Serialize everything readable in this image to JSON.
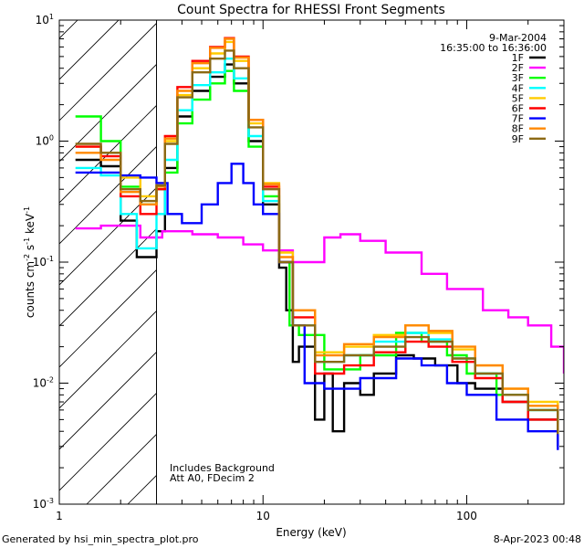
{
  "chart_data": {
    "type": "line",
    "title": "Count Spectra for RHESSI Front Segments",
    "xlabel": "Energy (keV)",
    "ylabel": "counts cm^-2 s^-1 keV^-1",
    "ylabel_parts": {
      "base": "counts cm",
      "exp1": "-2",
      "mid": " s",
      "exp2": "-1",
      "tail": " keV",
      "exp3": "-1"
    },
    "x_scale": "log",
    "y_scale": "log",
    "xlim": [
      1,
      300
    ],
    "ylim": [
      0.001,
      10
    ],
    "x_ticks": [
      {
        "value": 1,
        "label": "1"
      },
      {
        "value": 10,
        "label": "10"
      },
      {
        "value": 100,
        "label": "100"
      }
    ],
    "y_ticks": [
      {
        "value": 0.001,
        "base": "10",
        "exp": "-3"
      },
      {
        "value": 0.01,
        "base": "10",
        "exp": "-2"
      },
      {
        "value": 0.1,
        "base": "10",
        "exp": "-1"
      },
      {
        "value": 1,
        "base": "10",
        "exp": "0"
      },
      {
        "value": 10,
        "base": "10",
        "exp": "1"
      }
    ],
    "excluded_region": {
      "from": 1,
      "to": 3,
      "style": "hatched"
    },
    "date": "9-Mar-2004",
    "time_range": "16:35:00 to 16:36:00",
    "annotations": [
      "Includes Background",
      "Att A0, FDecim 2"
    ],
    "series": [
      {
        "name": "1F",
        "color": "#000000",
        "points": [
          [
            1.2,
            0.7
          ],
          [
            1.6,
            0.62
          ],
          [
            2.0,
            0.22
          ],
          [
            2.4,
            0.11
          ],
          [
            3.0,
            0.18
          ],
          [
            3.3,
            0.6
          ],
          [
            3.8,
            1.6
          ],
          [
            4.5,
            2.6
          ],
          [
            5.5,
            3.4
          ],
          [
            6.5,
            4.3
          ],
          [
            7.2,
            3.0
          ],
          [
            8.5,
            1.0
          ],
          [
            10.0,
            0.3
          ],
          [
            12.0,
            0.09
          ],
          [
            13.0,
            0.04
          ],
          [
            14.0,
            0.015
          ],
          [
            15.0,
            0.02
          ],
          [
            18.0,
            0.005
          ],
          [
            20.0,
            0.012
          ],
          [
            22.0,
            0.004
          ],
          [
            25.0,
            0.01
          ],
          [
            30.0,
            0.008
          ],
          [
            35.0,
            0.012
          ],
          [
            45.0,
            0.017
          ],
          [
            55.0,
            0.016
          ],
          [
            70.0,
            0.014
          ],
          [
            90.0,
            0.01
          ],
          [
            110.0,
            0.009
          ],
          [
            150.0,
            0.007
          ],
          [
            200.0,
            0.005
          ],
          [
            280.0,
            0.003
          ]
        ]
      },
      {
        "name": "2F",
        "color": "#ff00ff",
        "points": [
          [
            1.2,
            0.19
          ],
          [
            1.6,
            0.2
          ],
          [
            2.5,
            0.16
          ],
          [
            3.2,
            0.18
          ],
          [
            4.5,
            0.17
          ],
          [
            6.0,
            0.16
          ],
          [
            8.0,
            0.14
          ],
          [
            10.0,
            0.125
          ],
          [
            14.0,
            0.1
          ],
          [
            20.0,
            0.16
          ],
          [
            24.0,
            0.17
          ],
          [
            30.0,
            0.15
          ],
          [
            40.0,
            0.12
          ],
          [
            60.0,
            0.08
          ],
          [
            80.0,
            0.06
          ],
          [
            120.0,
            0.04
          ],
          [
            160.0,
            0.035
          ],
          [
            200.0,
            0.03
          ],
          [
            260.0,
            0.02
          ],
          [
            300.0,
            0.012
          ]
        ]
      },
      {
        "name": "3F",
        "color": "#00ff00",
        "points": [
          [
            1.2,
            1.6
          ],
          [
            1.6,
            1.0
          ],
          [
            2.0,
            0.42
          ],
          [
            2.5,
            0.3
          ],
          [
            3.0,
            0.4
          ],
          [
            3.3,
            0.55
          ],
          [
            3.8,
            1.4
          ],
          [
            4.5,
            2.2
          ],
          [
            5.5,
            3.0
          ],
          [
            6.5,
            3.8
          ],
          [
            7.2,
            2.6
          ],
          [
            8.5,
            0.9
          ],
          [
            10.0,
            0.35
          ],
          [
            12.0,
            0.1
          ],
          [
            13.5,
            0.03
          ],
          [
            15.0,
            0.025
          ],
          [
            20.0,
            0.013
          ],
          [
            30.0,
            0.017
          ],
          [
            45.0,
            0.026
          ],
          [
            60.0,
            0.022
          ],
          [
            80.0,
            0.017
          ],
          [
            100.0,
            0.012
          ],
          [
            140.0,
            0.008
          ],
          [
            200.0,
            0.006
          ],
          [
            280.0,
            0.004
          ]
        ]
      },
      {
        "name": "4F",
        "color": "#00ffff",
        "points": [
          [
            1.2,
            0.6
          ],
          [
            1.6,
            0.52
          ],
          [
            2.0,
            0.25
          ],
          [
            2.4,
            0.13
          ],
          [
            3.0,
            0.25
          ],
          [
            3.3,
            0.7
          ],
          [
            3.8,
            1.8
          ],
          [
            4.5,
            2.9
          ],
          [
            5.5,
            3.7
          ],
          [
            6.5,
            4.8
          ],
          [
            7.2,
            3.3
          ],
          [
            8.5,
            1.1
          ],
          [
            10.0,
            0.32
          ],
          [
            12.0,
            0.1
          ],
          [
            14.0,
            0.03
          ],
          [
            18.0,
            0.015
          ],
          [
            25.0,
            0.017
          ],
          [
            35.0,
            0.022
          ],
          [
            50.0,
            0.026
          ],
          [
            65.0,
            0.023
          ],
          [
            85.0,
            0.016
          ],
          [
            110.0,
            0.012
          ],
          [
            150.0,
            0.008
          ],
          [
            200.0,
            0.006
          ],
          [
            280.0,
            0.004
          ]
        ]
      },
      {
        "name": "5F",
        "color": "#ffcc00",
        "points": [
          [
            1.2,
            0.9
          ],
          [
            1.6,
            0.8
          ],
          [
            2.0,
            0.5
          ],
          [
            2.5,
            0.35
          ],
          [
            3.0,
            0.45
          ],
          [
            3.3,
            1.0
          ],
          [
            3.8,
            2.4
          ],
          [
            4.5,
            4.0
          ],
          [
            5.5,
            5.3
          ],
          [
            6.5,
            6.6
          ],
          [
            7.2,
            4.6
          ],
          [
            8.5,
            1.4
          ],
          [
            10.0,
            0.45
          ],
          [
            12.0,
            0.12
          ],
          [
            14.0,
            0.04
          ],
          [
            18.0,
            0.018
          ],
          [
            25.0,
            0.02
          ],
          [
            35.0,
            0.025
          ],
          [
            50.0,
            0.03
          ],
          [
            65.0,
            0.026
          ],
          [
            85.0,
            0.019
          ],
          [
            110.0,
            0.014
          ],
          [
            150.0,
            0.009
          ],
          [
            200.0,
            0.007
          ],
          [
            280.0,
            0.0045
          ]
        ]
      },
      {
        "name": "6F",
        "color": "#ff0000",
        "points": [
          [
            1.2,
            0.9
          ],
          [
            1.6,
            0.75
          ],
          [
            2.0,
            0.35
          ],
          [
            2.5,
            0.25
          ],
          [
            3.0,
            0.4
          ],
          [
            3.3,
            1.1
          ],
          [
            3.8,
            2.8
          ],
          [
            4.5,
            4.6
          ],
          [
            5.5,
            6.0
          ],
          [
            6.5,
            7.1
          ],
          [
            7.2,
            5.0
          ],
          [
            8.5,
            1.5
          ],
          [
            10.0,
            0.42
          ],
          [
            12.0,
            0.1
          ],
          [
            14.0,
            0.035
          ],
          [
            18.0,
            0.012
          ],
          [
            25.0,
            0.014
          ],
          [
            35.0,
            0.018
          ],
          [
            50.0,
            0.022
          ],
          [
            65.0,
            0.02
          ],
          [
            85.0,
            0.015
          ],
          [
            110.0,
            0.011
          ],
          [
            150.0,
            0.007
          ],
          [
            200.0,
            0.005
          ],
          [
            280.0,
            0.0035
          ]
        ]
      },
      {
        "name": "7F",
        "color": "#0000ff",
        "points": [
          [
            1.2,
            0.55
          ],
          [
            1.6,
            0.55
          ],
          [
            2.0,
            0.52
          ],
          [
            2.5,
            0.5
          ],
          [
            3.0,
            0.45
          ],
          [
            3.4,
            0.25
          ],
          [
            4.0,
            0.21
          ],
          [
            5.0,
            0.3
          ],
          [
            6.0,
            0.45
          ],
          [
            7.0,
            0.65
          ],
          [
            8.0,
            0.45
          ],
          [
            9.0,
            0.3
          ],
          [
            10.0,
            0.25
          ],
          [
            12.0,
            0.1
          ],
          [
            14.0,
            0.03
          ],
          [
            16.0,
            0.01
          ],
          [
            20.0,
            0.009
          ],
          [
            30.0,
            0.011
          ],
          [
            45.0,
            0.016
          ],
          [
            60.0,
            0.014
          ],
          [
            80.0,
            0.01
          ],
          [
            100.0,
            0.008
          ],
          [
            140.0,
            0.005
          ],
          [
            200.0,
            0.004
          ],
          [
            280.0,
            0.0028
          ]
        ]
      },
      {
        "name": "8F",
        "color": "#ff8800",
        "points": [
          [
            1.2,
            0.8
          ],
          [
            1.6,
            0.7
          ],
          [
            2.0,
            0.38
          ],
          [
            2.5,
            0.3
          ],
          [
            3.0,
            0.42
          ],
          [
            3.3,
            1.05
          ],
          [
            3.8,
            2.6
          ],
          [
            4.5,
            4.4
          ],
          [
            5.5,
            5.9
          ],
          [
            6.5,
            7.0
          ],
          [
            7.2,
            4.9
          ],
          [
            8.5,
            1.5
          ],
          [
            10.0,
            0.44
          ],
          [
            12.0,
            0.11
          ],
          [
            14.0,
            0.04
          ],
          [
            18.0,
            0.017
          ],
          [
            25.0,
            0.021
          ],
          [
            35.0,
            0.024
          ],
          [
            50.0,
            0.03
          ],
          [
            65.0,
            0.027
          ],
          [
            85.0,
            0.02
          ],
          [
            110.0,
            0.014
          ],
          [
            150.0,
            0.009
          ],
          [
            200.0,
            0.0065
          ],
          [
            280.0,
            0.0042
          ]
        ]
      },
      {
        "name": "9F",
        "color": "#8b6914",
        "points": [
          [
            1.2,
            0.95
          ],
          [
            1.6,
            0.8
          ],
          [
            2.0,
            0.4
          ],
          [
            2.5,
            0.32
          ],
          [
            3.0,
            0.43
          ],
          [
            3.3,
            0.95
          ],
          [
            3.8,
            2.3
          ],
          [
            4.5,
            3.7
          ],
          [
            5.5,
            4.8
          ],
          [
            6.5,
            5.6
          ],
          [
            7.2,
            4.0
          ],
          [
            8.5,
            1.3
          ],
          [
            10.0,
            0.4
          ],
          [
            12.0,
            0.1
          ],
          [
            14.0,
            0.03
          ],
          [
            18.0,
            0.015
          ],
          [
            25.0,
            0.017
          ],
          [
            35.0,
            0.02
          ],
          [
            50.0,
            0.024
          ],
          [
            65.0,
            0.022
          ],
          [
            85.0,
            0.016
          ],
          [
            110.0,
            0.012
          ],
          [
            150.0,
            0.008
          ],
          [
            200.0,
            0.006
          ],
          [
            280.0,
            0.0038
          ]
        ]
      }
    ]
  },
  "footer": {
    "generated_by": "Generated by hsi_min_spectra_plot.pro",
    "timestamp": "8-Apr-2023 00:48"
  }
}
